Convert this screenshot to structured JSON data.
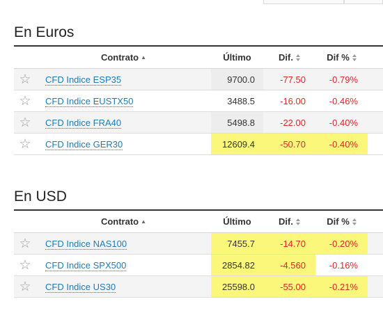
{
  "sections": [
    {
      "title": "En Euros",
      "headers": {
        "contract": "Contrato",
        "last": "Último",
        "dif": "Dif.",
        "pct": "Dif %"
      },
      "rows": [
        {
          "name": "CFD Indice ESP35",
          "last": "9700.0",
          "dif": "-77.50",
          "pct": "-0.79%"
        },
        {
          "name": "CFD Indice EUSTX50",
          "last": "3488.5",
          "dif": "-16.00",
          "pct": "-0.46%"
        },
        {
          "name": "CFD Indice FRA40",
          "last": "5498.8",
          "dif": "-22.00",
          "pct": "-0.40%"
        },
        {
          "name": "CFD Indice GER30",
          "last": "12609.4",
          "dif": "-50.70",
          "pct": "-0.40%"
        }
      ]
    },
    {
      "title": "En USD",
      "headers": {
        "contract": "Contrato",
        "last": "Último",
        "dif": "Dif.",
        "pct": "Dif %"
      },
      "rows": [
        {
          "name": "CFD Indice NAS100",
          "last": "7455.7",
          "dif": "-14.70",
          "pct": "-0.20%"
        },
        {
          "name": "CFD Indice SPX500",
          "last": "2854.82",
          "dif": "-4.560",
          "pct": "-0.16%"
        },
        {
          "name": "CFD Indice US30",
          "last": "25598.0",
          "dif": "-55.00",
          "pct": "-0.21%"
        }
      ]
    }
  ],
  "colors": {
    "negative": "#e0262c",
    "link": "#1d7bb8",
    "highlight_yellow": "#fbf77a",
    "highlight_grey": "#ededed"
  },
  "icons": {
    "favorite": "star-outline-icon",
    "sort_asc": "caret-up-icon",
    "sort": "sort-both-icon"
  }
}
